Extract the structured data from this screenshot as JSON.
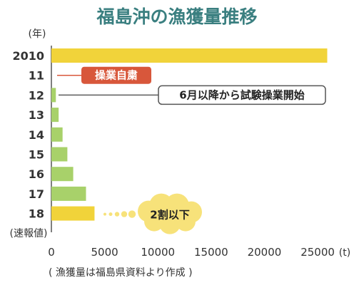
{
  "chart_data": {
    "type": "bar",
    "orientation": "horizontal",
    "title": "福島沖の漁獲量推移",
    "y_unit_label": "(年)",
    "y_bottom_note": "(速報値)",
    "x_unit_label": "(t)",
    "source_note": "( 漁獲量は福島県資料より作成 )",
    "xlim": [
      0,
      26000
    ],
    "x_ticks": [
      "0",
      "5000",
      "10000",
      "15000",
      "20000",
      "25000"
    ],
    "grid": false,
    "categories": [
      "2010",
      "11",
      "12",
      "13",
      "14",
      "15",
      "16",
      "17",
      "18"
    ],
    "values": [
      25900,
      0,
      420,
      680,
      1050,
      1500,
      2050,
      3250,
      4050
    ],
    "bar_colors": [
      "#f1d33a",
      "#f1d33a",
      "#a8d16a",
      "#a8d16a",
      "#a8d16a",
      "#a8d16a",
      "#a8d16a",
      "#a8d16a",
      "#f1d33a"
    ],
    "annotations": [
      {
        "category": "11",
        "text": "操業自粛",
        "style": "filled",
        "color": "#d8573b"
      },
      {
        "category": "12",
        "text": "6月以降から試験操業開始",
        "style": "outline",
        "color": "#555555"
      },
      {
        "category": "18",
        "text": "2割以下",
        "style": "cloud",
        "color": "#f7e27a"
      }
    ]
  }
}
